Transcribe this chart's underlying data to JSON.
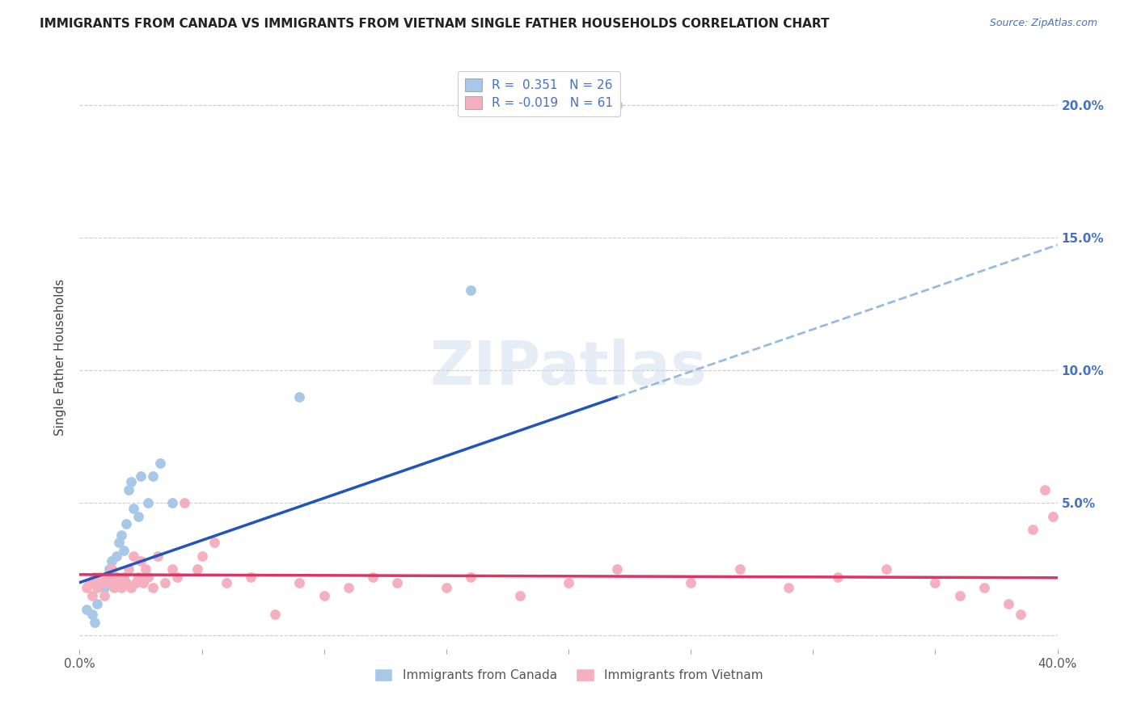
{
  "title": "IMMIGRANTS FROM CANADA VS IMMIGRANTS FROM VIETNAM SINGLE FATHER HOUSEHOLDS CORRELATION CHART",
  "source": "Source: ZipAtlas.com",
  "ylabel": "Single Father Households",
  "xlim": [
    0.0,
    0.4
  ],
  "ylim": [
    -0.005,
    0.215
  ],
  "canada_R": 0.351,
  "canada_N": 26,
  "vietnam_R": -0.019,
  "vietnam_N": 61,
  "canada_color": "#a8c8e8",
  "vietnam_color": "#f5b0c0",
  "canada_line_color": "#2255bb",
  "vietnam_line_color": "#dd3366",
  "canada_dashed_color": "#99bbdd",
  "watermark_text": "ZIPatlas",
  "legend_label_canada": "Immigrants from Canada",
  "legend_label_vietnam": "Immigrants from Vietnam",
  "ytick_values": [
    0.0,
    0.05,
    0.1,
    0.15,
    0.2
  ],
  "xtick_values": [
    0.0,
    0.05,
    0.1,
    0.15,
    0.2,
    0.25,
    0.3,
    0.35,
    0.4
  ],
  "canada_x": [
    0.003,
    0.005,
    0.006,
    0.007,
    0.008,
    0.01,
    0.011,
    0.012,
    0.013,
    0.015,
    0.016,
    0.017,
    0.018,
    0.019,
    0.02,
    0.021,
    0.022,
    0.024,
    0.025,
    0.028,
    0.03,
    0.033,
    0.038,
    0.09,
    0.16,
    0.22
  ],
  "canada_y": [
    0.01,
    0.008,
    0.005,
    0.012,
    0.02,
    0.018,
    0.022,
    0.025,
    0.028,
    0.03,
    0.035,
    0.038,
    0.032,
    0.042,
    0.055,
    0.058,
    0.048,
    0.045,
    0.06,
    0.05,
    0.06,
    0.065,
    0.05,
    0.09,
    0.13,
    0.2
  ],
  "vietnam_x": [
    0.003,
    0.004,
    0.005,
    0.006,
    0.007,
    0.008,
    0.009,
    0.01,
    0.011,
    0.012,
    0.013,
    0.014,
    0.015,
    0.016,
    0.017,
    0.018,
    0.019,
    0.02,
    0.021,
    0.022,
    0.023,
    0.024,
    0.025,
    0.026,
    0.027,
    0.028,
    0.03,
    0.032,
    0.035,
    0.038,
    0.04,
    0.043,
    0.048,
    0.05,
    0.055,
    0.06,
    0.07,
    0.08,
    0.09,
    0.1,
    0.11,
    0.12,
    0.13,
    0.15,
    0.16,
    0.18,
    0.2,
    0.22,
    0.25,
    0.27,
    0.29,
    0.31,
    0.33,
    0.35,
    0.36,
    0.37,
    0.38,
    0.385,
    0.39,
    0.395,
    0.398
  ],
  "vietnam_y": [
    0.018,
    0.02,
    0.015,
    0.022,
    0.018,
    0.022,
    0.02,
    0.015,
    0.022,
    0.02,
    0.025,
    0.018,
    0.022,
    0.02,
    0.018,
    0.022,
    0.02,
    0.025,
    0.018,
    0.03,
    0.02,
    0.022,
    0.028,
    0.02,
    0.025,
    0.022,
    0.018,
    0.03,
    0.02,
    0.025,
    0.022,
    0.05,
    0.025,
    0.03,
    0.035,
    0.02,
    0.022,
    0.008,
    0.02,
    0.015,
    0.018,
    0.022,
    0.02,
    0.018,
    0.022,
    0.015,
    0.02,
    0.025,
    0.02,
    0.025,
    0.018,
    0.022,
    0.025,
    0.02,
    0.015,
    0.018,
    0.012,
    0.008,
    0.04,
    0.055,
    0.045
  ]
}
